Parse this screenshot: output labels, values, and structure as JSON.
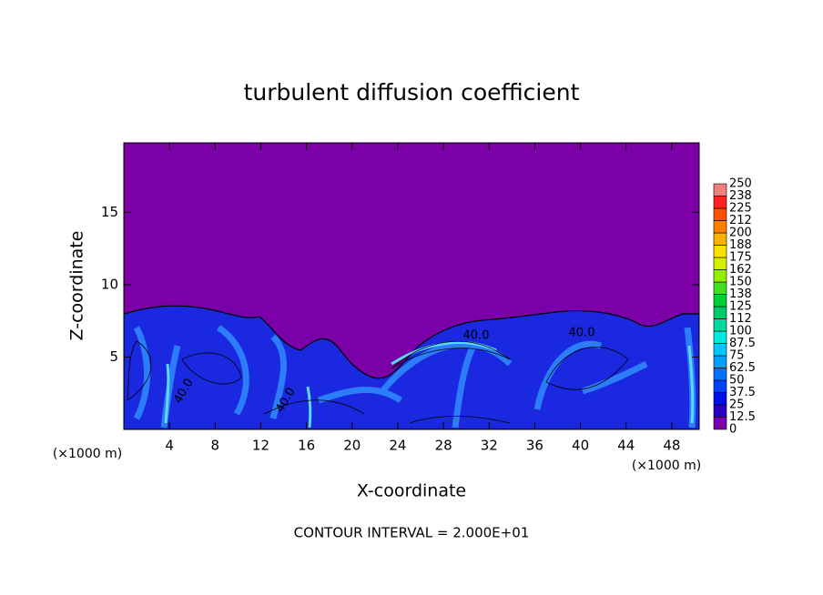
{
  "chart_data": {
    "type": "contour",
    "title": "turbulent diffusion coefficient",
    "x_label": "X-coordinate",
    "y_label": "Z-coordinate",
    "x_unit": "(×1000 m)",
    "y_unit": "(×1000 m)",
    "xlim": [
      0,
      50.4
    ],
    "xticks": [
      4,
      8,
      12,
      16,
      20,
      24,
      28,
      32,
      36,
      40,
      44,
      48
    ],
    "ylim": [
      0,
      19.8
    ],
    "yticks": [
      5,
      10,
      15
    ],
    "contour_interval": "CONTOUR INTERVAL = 2.000E+01",
    "contour_labels": [
      "40.0",
      "40.0",
      "40.0",
      "40.0"
    ],
    "colorbar": {
      "levels": [
        0,
        12.5,
        25,
        37.5,
        50,
        62.5,
        75,
        87.5,
        100,
        {
          "value": 112.5,
          "label": "112"
        },
        125,
        {
          "value": 137.5,
          "label": "138"
        },
        150,
        {
          "value": 162.5,
          "label": "162"
        },
        175,
        {
          "value": 187.5,
          "label": "188"
        },
        200,
        {
          "value": 212.5,
          "label": "212"
        },
        225,
        {
          "value": 237.5,
          "label": "238"
        },
        250
      ],
      "colors": [
        "#7b00a8",
        "#2a00c4",
        "#0010e8",
        "#0040ff",
        "#0070ff",
        "#00a0ff",
        "#00c8ff",
        "#00e8e0",
        "#00d8a0",
        "#00c868",
        "#00d030",
        "#40e020",
        "#90f000",
        "#d8f000",
        "#ffe000",
        "#ffb000",
        "#ff8000",
        "#ff5000",
        "#ff2020",
        "#f08080"
      ]
    }
  }
}
